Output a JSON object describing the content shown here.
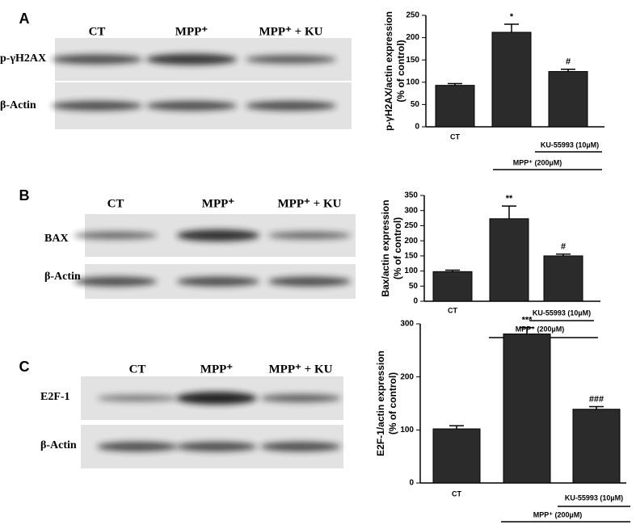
{
  "blots": [
    {
      "panel": "A",
      "lanes": [
        "CT",
        "MPP⁺",
        "MPP⁺ + KU"
      ],
      "rows": [
        "p-γH2AX",
        "β-Actin"
      ]
    },
    {
      "panel": "B",
      "lanes": [
        "CT",
        "MPP⁺",
        "MPP⁺ + KU"
      ],
      "rows": [
        "BAX",
        "β-Actin"
      ]
    },
    {
      "panel": "C",
      "lanes": [
        "CT",
        "MPP⁺",
        "MPP⁺ + KU"
      ],
      "rows": [
        "E2F-1",
        "β-Actin"
      ]
    }
  ],
  "chart_data": [
    {
      "type": "bar",
      "ylabel": [
        "p-γH2AX/actin expression",
        "(% of control)"
      ],
      "categories": [
        "CT",
        null,
        null
      ],
      "values": [
        93,
        212,
        124
      ],
      "errors": [
        4,
        18,
        5
      ],
      "annotations": [
        null,
        "*",
        "#"
      ],
      "color": "#2b2b2b",
      "ylim": [
        0,
        250
      ],
      "yticks": [
        0,
        50,
        100,
        150,
        200,
        250
      ],
      "treatments": [
        "KU-55993 (10µM)",
        "MPP⁺ (200µM)"
      ]
    },
    {
      "type": "bar",
      "ylabel": [
        "Bax/actin expression",
        "(% of control)"
      ],
      "categories": [
        "CT",
        null,
        null
      ],
      "values": [
        98,
        273,
        150
      ],
      "errors": [
        5,
        42,
        6
      ],
      "annotations": [
        null,
        "**",
        "#"
      ],
      "color": "#2b2b2b",
      "ylim": [
        0,
        350
      ],
      "yticks": [
        0,
        50,
        100,
        150,
        200,
        250,
        300,
        350
      ],
      "treatments": [
        "KU-55993 (10µM)",
        "MPP⁺ (200µM)"
      ]
    },
    {
      "type": "bar",
      "ylabel": [
        "E2F-1/actin expression",
        "(% of control)"
      ],
      "categories": [
        "CT",
        null,
        null
      ],
      "values": [
        102,
        281,
        139
      ],
      "errors": [
        6,
        12,
        5
      ],
      "annotations": [
        null,
        "***",
        "###"
      ],
      "color": "#2b2b2b",
      "ylim": [
        0,
        300
      ],
      "yticks": [
        0,
        100,
        200,
        300
      ],
      "treatments": [
        "KU-55993 (10µM)",
        "MPP⁺ (200µM)"
      ]
    }
  ]
}
